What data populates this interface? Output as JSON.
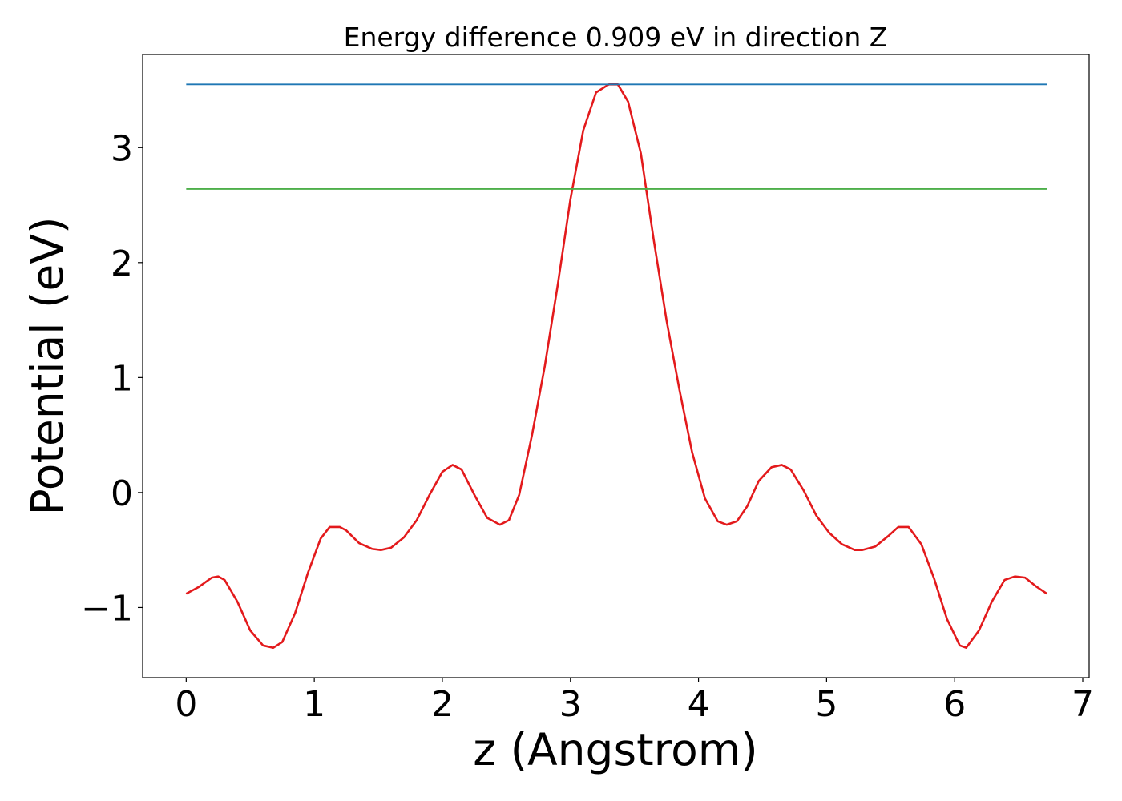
{
  "chart_data": {
    "type": "line",
    "title": "Energy difference 0.909 eV in direction Z",
    "xlabel": "z (Angstrom)",
    "ylabel": "Potential (eV)",
    "xlim": [
      -0.34,
      7.05
    ],
    "ylim": [
      -1.61,
      3.81
    ],
    "xticks": [
      0,
      1,
      2,
      3,
      4,
      5,
      6,
      7
    ],
    "xtick_labels": [
      "0",
      "1",
      "2",
      "3",
      "4",
      "5",
      "6",
      "7"
    ],
    "yticks": [
      -1,
      0,
      1,
      2,
      3
    ],
    "ytick_labels": [
      "−1",
      "0",
      "1",
      "2",
      "3"
    ],
    "grid": false,
    "series": [
      {
        "color": "#e31a1c",
        "x": [
          0.0,
          0.1,
          0.2,
          0.25,
          0.3,
          0.4,
          0.5,
          0.6,
          0.68,
          0.75,
          0.85,
          0.95,
          1.05,
          1.12,
          1.2,
          1.25,
          1.35,
          1.45,
          1.52,
          1.6,
          1.7,
          1.8,
          1.9,
          2.0,
          2.08,
          2.15,
          2.25,
          2.35,
          2.45,
          2.52,
          2.6,
          2.7,
          2.8,
          2.9,
          3.0,
          3.1,
          3.2,
          3.3,
          3.37,
          3.45,
          3.55,
          3.65,
          3.75,
          3.85,
          3.95,
          4.05,
          4.15,
          4.22,
          4.3,
          4.38,
          4.47,
          4.57,
          4.65,
          4.72,
          4.82,
          4.92,
          5.02,
          5.12,
          5.22,
          5.28,
          5.38,
          5.48,
          5.56,
          5.64,
          5.74,
          5.84,
          5.94,
          6.04,
          6.09,
          6.19,
          6.29,
          6.39,
          6.47,
          6.55,
          6.64,
          6.72
        ],
        "y": [
          -0.88,
          -0.82,
          -0.74,
          -0.73,
          -0.76,
          -0.95,
          -1.2,
          -1.33,
          -1.35,
          -1.3,
          -1.05,
          -0.7,
          -0.4,
          -0.3,
          -0.3,
          -0.33,
          -0.44,
          -0.49,
          -0.5,
          -0.48,
          -0.39,
          -0.24,
          -0.02,
          0.18,
          0.24,
          0.2,
          -0.02,
          -0.22,
          -0.28,
          -0.24,
          -0.02,
          0.5,
          1.1,
          1.8,
          2.55,
          3.15,
          3.48,
          3.55,
          3.55,
          3.4,
          2.95,
          2.2,
          1.5,
          0.9,
          0.35,
          -0.05,
          -0.25,
          -0.28,
          -0.25,
          -0.12,
          0.1,
          0.22,
          0.24,
          0.2,
          0.02,
          -0.2,
          -0.35,
          -0.45,
          -0.5,
          -0.5,
          -0.47,
          -0.38,
          -0.3,
          -0.3,
          -0.45,
          -0.75,
          -1.1,
          -1.33,
          -1.35,
          -1.2,
          -0.95,
          -0.76,
          -0.73,
          -0.74,
          -0.82,
          -0.88
        ]
      },
      {
        "color": "#1f77b4",
        "x": [
          0.0,
          6.72
        ],
        "y": [
          3.55,
          3.55
        ]
      },
      {
        "color": "#4daf4a",
        "x": [
          0.0,
          6.72
        ],
        "y": [
          2.64,
          2.64
        ]
      }
    ]
  }
}
